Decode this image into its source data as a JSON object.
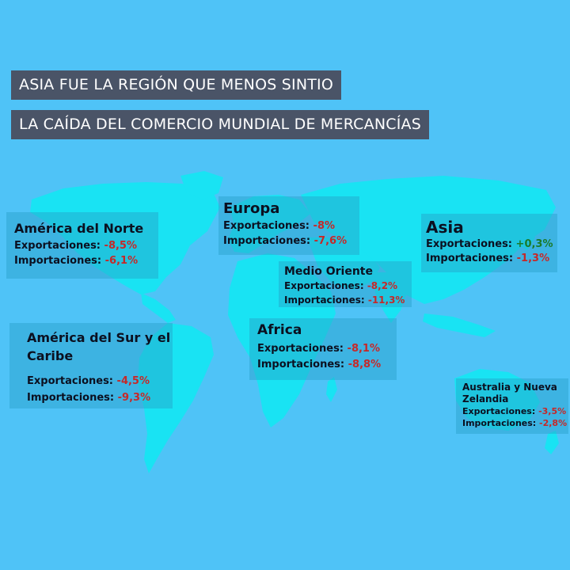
{
  "title": {
    "line1": "ASIA FUE LA REGIÓN QUE MENOS SINTIO",
    "line2": "LA CAÍDA DEL COMERCIO MUNDIAL DE MERCANCÍAS"
  },
  "colors": {
    "background": "#4fc3f7",
    "land": "#19e3f3",
    "title_bg": "#4a5467",
    "negative": "#c62828",
    "positive": "#1b7a2a"
  },
  "labels": {
    "exports": "Exportaciones:",
    "imports": "Importaciones:"
  },
  "regions": {
    "north_america": {
      "name": "América del Norte",
      "exports": "-8,5%",
      "imports": "-6,1%"
    },
    "europe": {
      "name": "Europa",
      "exports": "-8%",
      "imports": "-7,6%"
    },
    "middle_east": {
      "name": "Medio Oriente",
      "exports": "-8,2%",
      "imports": "-11,3%"
    },
    "asia": {
      "name": "Asia",
      "exports": "+0,3%",
      "imports": "-1,3%"
    },
    "south_america": {
      "name": "América del Sur y el Caribe",
      "exports": "-4,5%",
      "imports": "-9,3%"
    },
    "africa": {
      "name": "Africa",
      "exports": "-8,1%",
      "imports": "-8,8%"
    },
    "oceania": {
      "name": "Australia y Nueva Zelandia",
      "exports": "-3,5%",
      "imports": "-2,8%"
    }
  }
}
